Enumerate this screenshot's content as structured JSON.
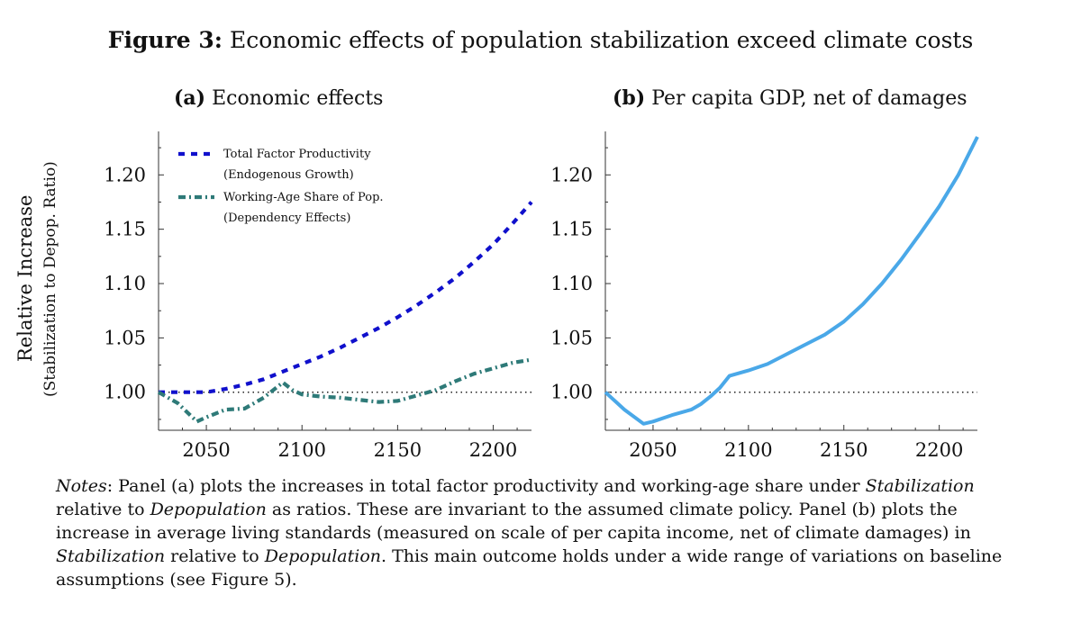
{
  "figure": {
    "label": "Figure 3:",
    "title": "Economic effects of population stabilization exceed climate costs"
  },
  "notes": {
    "lead": "Notes",
    "t1": ": Panel (a) plots the increases in total factor productivity and working-age share under ",
    "stab1": "Stabilization",
    "t2": " relative to ",
    "depop1": "Depopulation",
    "t3": " as ratios. These are invariant to the assumed climate policy. Panel (b) plots the increase in average living standards (measured on scale of per capita income, net of climate damages) in ",
    "stab2": "Stabilization",
    "t4": " relative to ",
    "depop2": "Depopulation",
    "t5": ". This main outcome holds under a wide range of variations on baseline assumptions (see Figure 5)."
  },
  "colors": {
    "tfp": "#1010cc",
    "wa": "#2e7a78",
    "gdp": "#4aa8e8",
    "ref": "#222222"
  },
  "chart_data": [
    {
      "type": "line",
      "panel_label": "(a)",
      "title": "Economic effects",
      "xlabel": "",
      "ylabel": "Relative Increase",
      "ylabel_sub": "(Stabilization to Depop. Ratio)",
      "xlim": [
        2025,
        2220
      ],
      "ylim": [
        0.965,
        1.24
      ],
      "xticks": [
        2050,
        2100,
        2150,
        2200
      ],
      "yticks": [
        1.0,
        1.05,
        1.1,
        1.15,
        1.2
      ],
      "ytick_labels": [
        "1.00",
        "1.05",
        "1.10",
        "1.15",
        "1.20"
      ],
      "xtick_labels": [
        "2050",
        "2100",
        "2150",
        "2200"
      ],
      "reference_line": 1.0,
      "legend_position": "top-left",
      "series": [
        {
          "name": "Total Factor Productivity",
          "name_sub": "(Endogenous Growth)",
          "style": "dashed",
          "x": [
            2025,
            2040,
            2050,
            2060,
            2070,
            2080,
            2090,
            2100,
            2110,
            2120,
            2130,
            2140,
            2150,
            2160,
            2170,
            2180,
            2190,
            2200,
            2210,
            2220
          ],
          "values": [
            1.0,
            1.0,
            1.0,
            1.003,
            1.007,
            1.012,
            1.019,
            1.026,
            1.033,
            1.041,
            1.05,
            1.059,
            1.069,
            1.08,
            1.092,
            1.105,
            1.12,
            1.136,
            1.155,
            1.175
          ]
        },
        {
          "name": "Working-Age Share of Pop.",
          "name_sub": "(Dependency Effects)",
          "style": "dashdot",
          "x": [
            2025,
            2035,
            2045,
            2050,
            2060,
            2070,
            2080,
            2090,
            2095,
            2100,
            2110,
            2120,
            2130,
            2140,
            2150,
            2160,
            2170,
            2180,
            2190,
            2200,
            2210,
            2220
          ],
          "values": [
            1.0,
            0.99,
            0.973,
            0.977,
            0.984,
            0.985,
            0.995,
            1.009,
            1.002,
            0.998,
            0.996,
            0.995,
            0.993,
            0.991,
            0.992,
            0.997,
            1.002,
            1.01,
            1.017,
            1.022,
            1.027,
            1.03
          ]
        }
      ]
    },
    {
      "type": "line",
      "panel_label": "(b)",
      "title": "Per capita GDP, net of damages",
      "xlabel": "",
      "ylabel": "",
      "xlim": [
        2025,
        2220
      ],
      "ylim": [
        0.965,
        1.24
      ],
      "xticks": [
        2050,
        2100,
        2150,
        2200
      ],
      "yticks": [
        1.0,
        1.05,
        1.1,
        1.15,
        1.2
      ],
      "ytick_labels": [
        "1.00",
        "1.05",
        "1.10",
        "1.15",
        "1.20"
      ],
      "xtick_labels": [
        "2050",
        "2100",
        "2150",
        "2200"
      ],
      "reference_line": 1.0,
      "series": [
        {
          "name": "Per capita GDP, net of damages",
          "style": "solid",
          "x": [
            2025,
            2035,
            2045,
            2050,
            2060,
            2070,
            2075,
            2080,
            2085,
            2090,
            2100,
            2110,
            2120,
            2130,
            2140,
            2150,
            2160,
            2170,
            2180,
            2190,
            2200,
            2210,
            2220
          ],
          "values": [
            1.0,
            0.984,
            0.971,
            0.973,
            0.979,
            0.984,
            0.989,
            0.996,
            1.004,
            1.015,
            1.02,
            1.026,
            1.035,
            1.044,
            1.053,
            1.065,
            1.081,
            1.1,
            1.122,
            1.146,
            1.171,
            1.2,
            1.235
          ]
        }
      ]
    }
  ]
}
